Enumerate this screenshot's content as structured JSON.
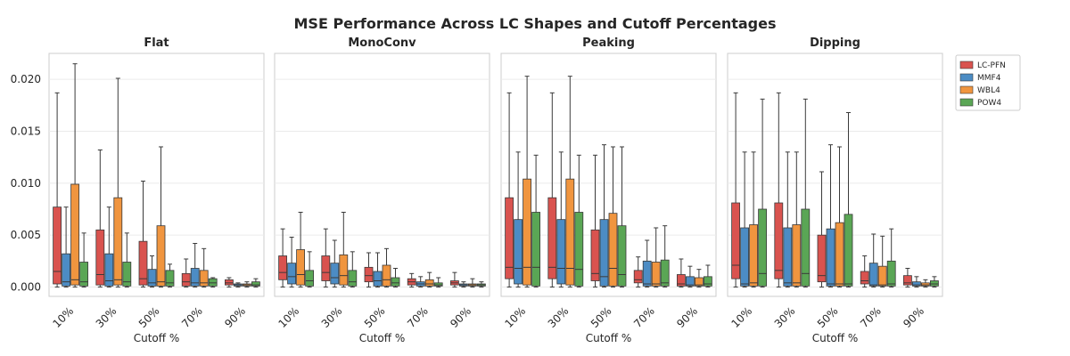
{
  "title": "MSE Performance Across LC Shapes and Cutoff Percentages",
  "chart_data": {
    "type": "box",
    "title": "MSE Performance Across LC Shapes and Cutoff Percentages",
    "xlabel": "Cutoff %",
    "ylabel": "",
    "categories": [
      "10%",
      "30%",
      "50%",
      "70%",
      "90%"
    ],
    "yticks": [
      "0.000",
      "0.005",
      "0.010",
      "0.015",
      "0.020"
    ],
    "ylim": [
      -0.0009,
      0.0225
    ],
    "shared_y": true,
    "grid": "y",
    "legend_position": "outside-right-top",
    "series": [
      {
        "name": "LC-PFN",
        "color": "#d9534f"
      },
      {
        "name": "MMF4",
        "color": "#4c8cc4"
      },
      {
        "name": "WBL4",
        "color": "#f0953f"
      },
      {
        "name": "POW4",
        "color": "#5aa655"
      }
    ],
    "panels": [
      {
        "title": "Flat",
        "boxes": [
          [
            [
              0.0,
              0.0003,
              0.0015,
              0.0077,
              0.0187
            ],
            [
              0.0,
              0.0001,
              0.0005,
              0.0032,
              0.0077
            ],
            [
              0.0,
              0.0002,
              0.0007,
              0.0099,
              0.0215
            ],
            [
              0.0,
              0.0001,
              0.0005,
              0.0024,
              0.0052
            ]
          ],
          [
            [
              0.0,
              0.0002,
              0.0012,
              0.0055,
              0.0132
            ],
            [
              0.0,
              0.0001,
              0.0006,
              0.0032,
              0.0077
            ],
            [
              0.0,
              0.0002,
              0.0007,
              0.0086,
              0.0201
            ],
            [
              0.0,
              0.0001,
              0.0005,
              0.0024,
              0.0052
            ]
          ],
          [
            [
              0.0,
              0.0002,
              0.0008,
              0.0044,
              0.0102
            ],
            [
              0.0,
              0.0001,
              0.0004,
              0.0017,
              0.003
            ],
            [
              0.0,
              0.0001,
              0.0005,
              0.0059,
              0.0135
            ],
            [
              0.0,
              0.0001,
              0.0004,
              0.0016,
              0.0022
            ]
          ],
          [
            [
              0.0,
              0.0001,
              0.0005,
              0.0013,
              0.0027
            ],
            [
              0.0,
              0.0001,
              0.0004,
              0.0018,
              0.0042
            ],
            [
              0.0,
              0.0001,
              0.0004,
              0.0016,
              0.0037
            ],
            [
              0.0,
              0.0001,
              0.0004,
              0.0008,
              0.0009
            ]
          ],
          [
            [
              0.0,
              0.0002,
              0.0004,
              0.0007,
              0.0009
            ],
            [
              0.0,
              0.0001,
              0.0002,
              0.0003,
              0.0004
            ],
            [
              0.0,
              0.0001,
              0.0002,
              0.0003,
              0.0005
            ],
            [
              0.0,
              0.0001,
              0.0002,
              0.0005,
              0.0008
            ]
          ]
        ]
      },
      {
        "title": "MonoConv",
        "boxes": [
          [
            [
              0.0,
              0.0007,
              0.0014,
              0.003,
              0.0056
            ],
            [
              0.0,
              0.0003,
              0.001,
              0.0023,
              0.0048
            ],
            [
              0.0,
              0.0002,
              0.0012,
              0.0036,
              0.0072
            ],
            [
              0.0,
              0.0001,
              0.0006,
              0.0016,
              0.0034
            ]
          ],
          [
            [
              0.0,
              0.0006,
              0.0014,
              0.003,
              0.0056
            ],
            [
              0.0,
              0.0003,
              0.0009,
              0.0023,
              0.0045
            ],
            [
              0.0,
              0.0002,
              0.0011,
              0.0031,
              0.0072
            ],
            [
              0.0,
              0.0001,
              0.0005,
              0.0016,
              0.0034
            ]
          ],
          [
            [
              0.0,
              0.0005,
              0.0011,
              0.0019,
              0.0033
            ],
            [
              0.0,
              0.0001,
              0.0006,
              0.0015,
              0.0033
            ],
            [
              0.0,
              0.0001,
              0.0007,
              0.0021,
              0.0037
            ],
            [
              0.0,
              0.0001,
              0.0004,
              0.0009,
              0.0018
            ]
          ],
          [
            [
              0.0,
              0.0002,
              0.0005,
              0.0008,
              0.0013
            ],
            [
              0.0,
              0.0001,
              0.0003,
              0.0005,
              0.001
            ],
            [
              0.0,
              0.0001,
              0.0003,
              0.0007,
              0.0014
            ],
            [
              0.0,
              0.0001,
              0.0002,
              0.0004,
              0.0009
            ]
          ],
          [
            [
              0.0,
              0.0002,
              0.0004,
              0.0006,
              0.0014
            ],
            [
              0.0,
              0.0001,
              0.0002,
              0.0003,
              0.0005
            ],
            [
              0.0,
              0.0001,
              0.0002,
              0.0003,
              0.0008
            ],
            [
              0.0,
              0.0001,
              0.0002,
              0.0003,
              0.0005
            ]
          ]
        ]
      },
      {
        "title": "Peaking",
        "boxes": [
          [
            [
              0.0,
              0.0008,
              0.0019,
              0.0086,
              0.0187
            ],
            [
              0.0,
              0.0003,
              0.0018,
              0.0065,
              0.013
            ],
            [
              0.0,
              0.0002,
              0.0019,
              0.0104,
              0.0203
            ],
            [
              0.0,
              0.0001,
              0.0019,
              0.0072,
              0.0127
            ]
          ],
          [
            [
              0.0,
              0.0008,
              0.0019,
              0.0086,
              0.0187
            ],
            [
              0.0,
              0.0003,
              0.0018,
              0.0065,
              0.013
            ],
            [
              0.0,
              0.0002,
              0.0018,
              0.0104,
              0.0203
            ],
            [
              0.0,
              0.0001,
              0.0017,
              0.0072,
              0.0127
            ]
          ],
          [
            [
              0.0,
              0.0006,
              0.0013,
              0.0055,
              0.0127
            ],
            [
              0.0,
              0.0001,
              0.001,
              0.0065,
              0.0137
            ],
            [
              0.0,
              0.0001,
              0.0018,
              0.0071,
              0.0135
            ],
            [
              0.0,
              0.0001,
              0.0012,
              0.0059,
              0.0135
            ]
          ],
          [
            [
              0.0,
              0.0004,
              0.0007,
              0.0016,
              0.0029
            ],
            [
              0.0,
              0.0001,
              0.0003,
              0.0025,
              0.0045
            ],
            [
              0.0,
              0.0001,
              0.0003,
              0.0024,
              0.0057
            ],
            [
              0.0,
              0.0001,
              0.0004,
              0.0026,
              0.0059
            ]
          ],
          [
            [
              0.0,
              0.0001,
              0.0003,
              0.0012,
              0.0027
            ],
            [
              0.0,
              0.0001,
              0.0002,
              0.001,
              0.002
            ],
            [
              0.0,
              0.0001,
              0.0002,
              0.0009,
              0.0017
            ],
            [
              0.0,
              0.0001,
              0.0003,
              0.001,
              0.0021
            ]
          ]
        ]
      },
      {
        "title": "Dipping",
        "boxes": [
          [
            [
              0.0,
              0.0008,
              0.0021,
              0.0081,
              0.0187
            ],
            [
              0.0,
              0.0001,
              0.0003,
              0.0057,
              0.013
            ],
            [
              0.0,
              0.0001,
              0.0004,
              0.006,
              0.013
            ],
            [
              0.0,
              0.0001,
              0.0013,
              0.0075,
              0.0181
            ]
          ],
          [
            [
              0.0,
              0.0008,
              0.0016,
              0.0081,
              0.0187
            ],
            [
              0.0,
              0.0001,
              0.0004,
              0.0057,
              0.013
            ],
            [
              0.0,
              0.0001,
              0.0004,
              0.006,
              0.013
            ],
            [
              0.0,
              0.0001,
              0.0013,
              0.0075,
              0.0181
            ]
          ],
          [
            [
              0.0,
              0.0005,
              0.0011,
              0.005,
              0.0111
            ],
            [
              0.0,
              0.0001,
              0.0003,
              0.0056,
              0.0137
            ],
            [
              0.0,
              0.0001,
              0.0003,
              0.0062,
              0.0135
            ],
            [
              0.0,
              0.0001,
              0.0003,
              0.007,
              0.0168
            ]
          ],
          [
            [
              0.0,
              0.0003,
              0.0006,
              0.0015,
              0.003
            ],
            [
              0.0,
              0.0001,
              0.0002,
              0.0023,
              0.0051
            ],
            [
              0.0,
              0.0001,
              0.0002,
              0.002,
              0.0049
            ],
            [
              0.0,
              0.0001,
              0.0003,
              0.0025,
              0.0056
            ]
          ],
          [
            [
              0.0,
              0.0002,
              0.0004,
              0.0011,
              0.0018
            ],
            [
              0.0,
              0.0001,
              0.0002,
              0.0005,
              0.001
            ],
            [
              0.0,
              0.0001,
              0.0002,
              0.0004,
              0.0007
            ],
            [
              0.0,
              0.0001,
              0.0003,
              0.0006,
              0.001
            ]
          ]
        ]
      }
    ]
  }
}
